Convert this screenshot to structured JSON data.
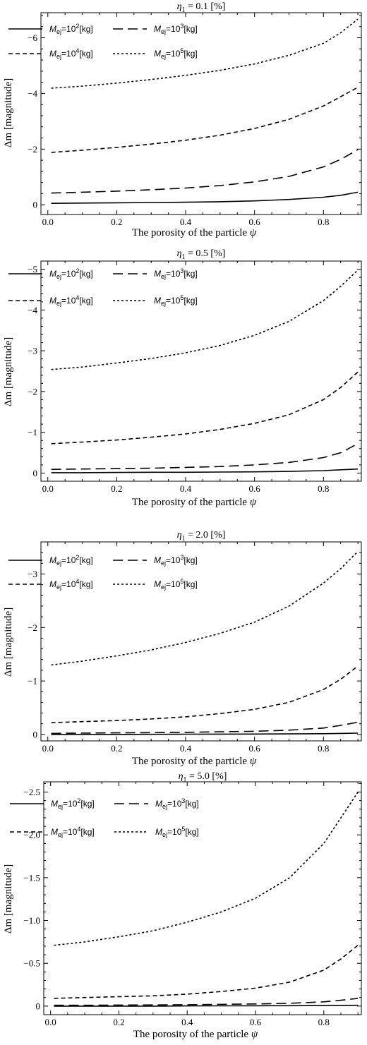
{
  "chart_data": [
    {
      "type": "line",
      "title": "η1 = 0.1 [%]",
      "title_main": "η",
      "title_sub": "1",
      "title_rest": " = 0.1 [%]",
      "xlabel": "The porosity of the particle ψ",
      "xlabel_text": "The porosity of the particle ",
      "xlabel_symbol": "ψ",
      "ylabel": "Δm [magnitude]",
      "y_axis_reversed": true,
      "xlim": [
        -0.02,
        0.91
      ],
      "ylim": [
        0.35,
        -6.9
      ],
      "xticks": [
        0.0,
        0.2,
        0.4,
        0.6,
        0.8
      ],
      "xtick_labels": [
        "0.0",
        "0.2",
        "0.4",
        "0.6",
        "0.8"
      ],
      "yticks": [
        0,
        -2,
        -4,
        -6
      ],
      "ytick_labels": [
        "0",
        "−2",
        "−4",
        "−6"
      ],
      "x": [
        0.01,
        0.1,
        0.2,
        0.3,
        0.4,
        0.5,
        0.6,
        0.7,
        0.8,
        0.85,
        0.9
      ],
      "series": [
        {
          "name": "Mej=10^2[kg]",
          "mass_exp": "2",
          "values": [
            -0.05,
            -0.06,
            -0.07,
            -0.08,
            -0.09,
            -0.11,
            -0.14,
            -0.19,
            -0.27,
            -0.34,
            -0.45
          ]
        },
        {
          "name": "Mej=10^3[kg]",
          "mass_exp": "3",
          "values": [
            -0.42,
            -0.45,
            -0.49,
            -0.54,
            -0.6,
            -0.69,
            -0.82,
            -1.02,
            -1.36,
            -1.63,
            -1.98
          ]
        },
        {
          "name": "Mej=10^4[kg]",
          "mass_exp": "4",
          "values": [
            -1.88,
            -1.96,
            -2.06,
            -2.18,
            -2.32,
            -2.5,
            -2.74,
            -3.07,
            -3.55,
            -3.88,
            -4.22
          ]
        },
        {
          "name": "Mej=10^5[kg]",
          "mass_exp": "5",
          "values": [
            -4.19,
            -4.26,
            -4.37,
            -4.5,
            -4.65,
            -4.83,
            -5.06,
            -5.37,
            -5.8,
            -6.18,
            -6.67
          ]
        }
      ],
      "grid": false,
      "legend_position": "top, inside plot, two columns"
    },
    {
      "type": "line",
      "title": "η1 = 0.5 [%]",
      "title_main": "η",
      "title_sub": "1",
      "title_rest": " = 0.5 [%]",
      "xlabel": "The porosity of the particle ψ",
      "xlabel_text": "The porosity of the particle ",
      "xlabel_symbol": "ψ",
      "ylabel": "Δm [magnitude]",
      "y_axis_reversed": true,
      "xlim": [
        -0.02,
        0.91
      ],
      "ylim": [
        0.2,
        -5.2
      ],
      "xticks": [
        0.0,
        0.2,
        0.4,
        0.6,
        0.8
      ],
      "xtick_labels": [
        "0.0",
        "0.2",
        "0.4",
        "0.6",
        "0.8"
      ],
      "yticks": [
        0,
        -1,
        -2,
        -3,
        -4,
        -5
      ],
      "ytick_labels": [
        "0",
        "−1",
        "−2",
        "−3",
        "−4",
        "−5"
      ],
      "x": [
        0.01,
        0.1,
        0.2,
        0.3,
        0.4,
        0.5,
        0.6,
        0.7,
        0.8,
        0.85,
        0.9
      ],
      "series": [
        {
          "name": "Mej=10^2[kg]",
          "mass_exp": "2",
          "values": [
            -0.01,
            -0.01,
            -0.015,
            -0.02,
            -0.02,
            -0.025,
            -0.03,
            -0.04,
            -0.06,
            -0.08,
            -0.1
          ]
        },
        {
          "name": "Mej=10^3[kg]",
          "mass_exp": "3",
          "values": [
            -0.09,
            -0.1,
            -0.11,
            -0.12,
            -0.14,
            -0.16,
            -0.2,
            -0.26,
            -0.38,
            -0.5,
            -0.72
          ]
        },
        {
          "name": "Mej=10^4[kg]",
          "mass_exp": "4",
          "values": [
            -0.72,
            -0.76,
            -0.81,
            -0.88,
            -0.96,
            -1.07,
            -1.22,
            -1.43,
            -1.8,
            -2.1,
            -2.48
          ]
        },
        {
          "name": "Mej=10^5[kg]",
          "mass_exp": "5",
          "values": [
            -2.54,
            -2.6,
            -2.7,
            -2.81,
            -2.95,
            -3.13,
            -3.38,
            -3.72,
            -4.23,
            -4.58,
            -4.98
          ]
        }
      ],
      "grid": false,
      "legend_position": "top, inside plot, two columns"
    },
    {
      "type": "line",
      "title": "η1 = 2.0 [%]",
      "title_main": "η",
      "title_sub": "1",
      "title_rest": " = 2.0 [%]",
      "xlabel": "The porosity of the particle ψ",
      "xlabel_text": "The porosity of the particle ",
      "xlabel_symbol": "ψ",
      "ylabel": "Δm [magnitude]",
      "y_axis_reversed": true,
      "xlim": [
        -0.02,
        0.91
      ],
      "ylim": [
        0.12,
        -3.6
      ],
      "xticks": [
        0.0,
        0.2,
        0.4,
        0.6,
        0.8
      ],
      "xtick_labels": [
        "0.0",
        "0.2",
        "0.4",
        "0.6",
        "0.8"
      ],
      "yticks": [
        0,
        -1,
        -2,
        -3
      ],
      "ytick_labels": [
        "0",
        "−1",
        "−2",
        "−3"
      ],
      "x": [
        0.01,
        0.1,
        0.2,
        0.3,
        0.4,
        0.5,
        0.6,
        0.7,
        0.8,
        0.85,
        0.9
      ],
      "series": [
        {
          "name": "Mej=10^2[kg]",
          "mass_exp": "2",
          "values": [
            0.0,
            0.0,
            0.0,
            -0.003,
            -0.005,
            -0.006,
            -0.008,
            -0.01,
            -0.015,
            -0.02,
            -0.025
          ]
        },
        {
          "name": "Mej=10^3[kg]",
          "mass_exp": "3",
          "values": [
            -0.02,
            -0.025,
            -0.03,
            -0.035,
            -0.04,
            -0.05,
            -0.06,
            -0.08,
            -0.12,
            -0.17,
            -0.23
          ]
        },
        {
          "name": "Mej=10^4[kg]",
          "mass_exp": "4",
          "values": [
            -0.22,
            -0.24,
            -0.26,
            -0.29,
            -0.33,
            -0.39,
            -0.47,
            -0.6,
            -0.84,
            -1.03,
            -1.28
          ]
        },
        {
          "name": "Mej=10^5[kg]",
          "mass_exp": "5",
          "values": [
            -1.3,
            -1.37,
            -1.47,
            -1.58,
            -1.72,
            -1.89,
            -2.1,
            -2.4,
            -2.83,
            -3.1,
            -3.42
          ]
        }
      ],
      "grid": false,
      "legend_position": "top, inside plot, two columns"
    },
    {
      "type": "line",
      "title": "η1 = 5.0 [%]",
      "title_main": "η",
      "title_sub": "1",
      "title_rest": " = 5.0 [%]",
      "xlabel": "The porosity of the particle ψ",
      "xlabel_text": "The porosity of the particle ",
      "xlabel_symbol": "ψ",
      "ylabel": "Δm [magnitude]",
      "y_axis_reversed": true,
      "xlim": [
        -0.02,
        0.91
      ],
      "ylim": [
        0.1,
        -2.62
      ],
      "xticks": [
        0.0,
        0.2,
        0.4,
        0.6,
        0.8
      ],
      "xtick_labels": [
        "0.0",
        "0.2",
        "0.4",
        "0.6",
        "0.8"
      ],
      "yticks": [
        0,
        -0.5,
        -1.0,
        -1.5,
        -2.0,
        -2.5
      ],
      "ytick_labels": [
        "0",
        "−0.5",
        "−1.0",
        "−1.5",
        "−2.0",
        "−2.5"
      ],
      "x": [
        0.01,
        0.1,
        0.2,
        0.3,
        0.4,
        0.5,
        0.6,
        0.7,
        0.8,
        0.85,
        0.9
      ],
      "series": [
        {
          "name": "Mej=10^2[kg]",
          "mass_exp": "2",
          "values": [
            0.0,
            0.0,
            0.0,
            0.0,
            -0.002,
            -0.003,
            -0.004,
            -0.005,
            -0.006,
            -0.008,
            -0.01
          ]
        },
        {
          "name": "Mej=10^3[kg]",
          "mass_exp": "3",
          "values": [
            -0.01,
            -0.01,
            -0.012,
            -0.014,
            -0.016,
            -0.02,
            -0.025,
            -0.033,
            -0.05,
            -0.068,
            -0.09
          ]
        },
        {
          "name": "Mej=10^4[kg]",
          "mass_exp": "4",
          "values": [
            -0.09,
            -0.1,
            -0.11,
            -0.12,
            -0.14,
            -0.17,
            -0.21,
            -0.28,
            -0.42,
            -0.55,
            -0.71
          ]
        },
        {
          "name": "Mej=10^5[kg]",
          "mass_exp": "5",
          "values": [
            -0.71,
            -0.75,
            -0.81,
            -0.88,
            -0.98,
            -1.1,
            -1.26,
            -1.5,
            -1.9,
            -2.2,
            -2.5
          ]
        }
      ],
      "grid": false,
      "legend_position": "top, inside plot, two columns"
    }
  ],
  "legend": {
    "prefix": "M",
    "subscript": "ej",
    "equals_base": "=10",
    "unit": "[kg]"
  },
  "styles": {
    "ink": "#000000",
    "background": "#ffffff",
    "dash_patterns": [
      "",
      "14 7",
      "6 4",
      "3 3"
    ]
  }
}
